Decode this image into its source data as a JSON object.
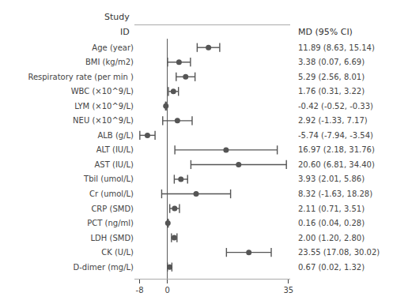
{
  "chart_data": {
    "type": "forest",
    "headers": [
      "Study",
      "ID",
      "MD (95% CI)"
    ],
    "categories": [
      "Age (year)",
      "BMI (kg/m2)",
      "Respiratory rate (per min )",
      "WBC (×10^9/L)",
      "LYM (×10^9/L)",
      "NEU (×10^9/L)",
      "ALB (g/L)",
      "ALT (IU/L)",
      "AST (IU/L)",
      "Tbil (umol/L)",
      "Cr (umol/L)",
      "CRP (SMD)",
      "PCT (ng/ml)",
      "LDH (SMD)",
      "CK (U/L)",
      "D-dimer (mg/L)"
    ],
    "values": [
      11.89,
      3.38,
      5.29,
      1.76,
      -0.42,
      2.92,
      -5.74,
      16.97,
      20.6,
      3.93,
      8.32,
      2.11,
      0.16,
      2.0,
      23.55,
      0.67
    ],
    "ci_lo": [
      8.63,
      0.07,
      2.56,
      0.31,
      -0.52,
      -1.33,
      -7.94,
      2.18,
      6.81,
      2.01,
      -1.63,
      0.71,
      0.04,
      1.2,
      17.08,
      0.02
    ],
    "ci_hi": [
      15.14,
      6.69,
      8.01,
      3.22,
      -0.33,
      7.17,
      -3.54,
      31.76,
      34.4,
      5.86,
      18.28,
      3.51,
      0.28,
      2.8,
      30.02,
      1.32
    ],
    "value_labels": [
      "11.89 (8.63, 15.14)",
      "3.38 (0.07, 6.69)",
      "5.29 (2.56, 8.01)",
      "1.76 (0.31, 3.22)",
      "-0.42 (-0.52, -0.33)",
      "2.92 (-1.33, 7.17)",
      "-5.74 (-7.94, -3.54)",
      "16.97 (2.18, 31.76)",
      "20.60 (6.81, 34.40)",
      "3.93 (2.01, 5.86)",
      "8.32 (-1.63, 18.28)",
      "2.11 (0.71, 3.51)",
      "0.16 (0.04, 0.28)",
      "2.00 (1.20, 2.80)",
      "23.55 (17.08, 30.02)",
      "0.67 (0.02, 1.32)"
    ],
    "reference_line": 0,
    "xlim": [
      -9.5,
      35.5
    ],
    "xticks": [
      -8,
      0,
      35
    ],
    "grid": false,
    "color": "#555555"
  }
}
